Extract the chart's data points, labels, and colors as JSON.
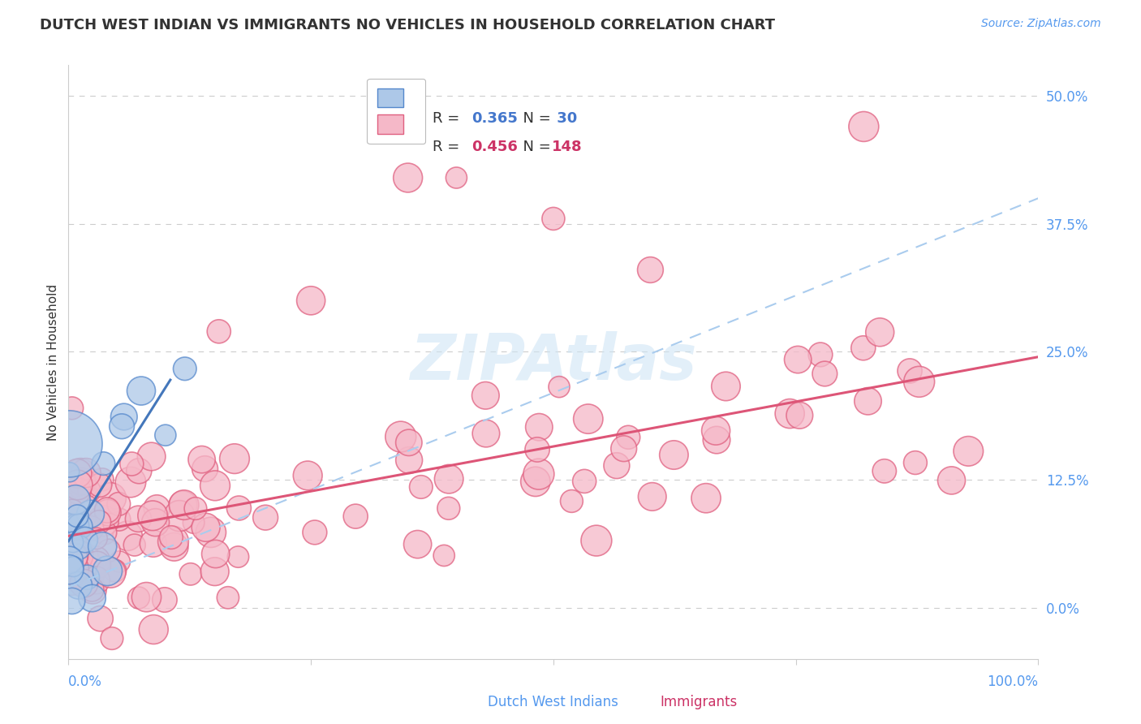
{
  "title": "DUTCH WEST INDIAN VS IMMIGRANTS NO VEHICLES IN HOUSEHOLD CORRELATION CHART",
  "source": "Source: ZipAtlas.com",
  "ylabel": "No Vehicles in Household",
  "ytick_vals": [
    0.0,
    12.5,
    25.0,
    37.5,
    50.0
  ],
  "ytick_labels": [
    "0.0%",
    "12.5%",
    "25.0%",
    "37.5%",
    "50.0%"
  ],
  "xtick_labels_left": "0.0%",
  "xtick_labels_right": "100.0%",
  "xlim": [
    0,
    100
  ],
  "ylim": [
    -5,
    53
  ],
  "legend_r1": "0.365",
  "legend_n1": "30",
  "legend_r2": "0.456",
  "legend_n2": "148",
  "color_blue_fill": "#adc8e8",
  "color_blue_edge": "#5588cc",
  "color_pink_fill": "#f5b8c8",
  "color_pink_edge": "#e06080",
  "color_blue_line": "#4477bb",
  "color_pink_line": "#dd5577",
  "color_dashed": "#aaccee",
  "color_grid": "#cccccc",
  "color_ytick_label": "#5599ee",
  "color_title": "#333333",
  "color_legend_rn": "#4477cc",
  "color_legend_rn2": "#cc3366",
  "watermark_color": "#d0e5f5",
  "background": "#ffffff",
  "title_fontsize": 13,
  "source_fontsize": 10,
  "ytick_fontsize": 12,
  "ylabel_fontsize": 11,
  "legend_fontsize": 13
}
